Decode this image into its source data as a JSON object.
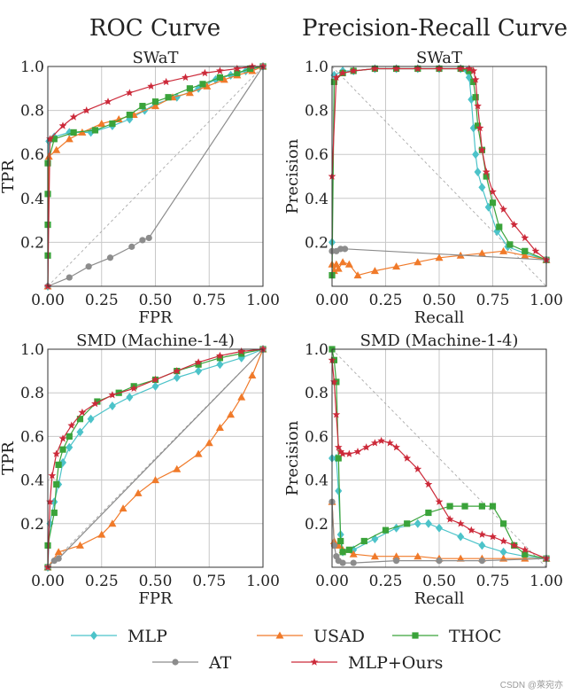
{
  "column_titles": [
    "ROC Curve",
    "Precision-Recall Curve"
  ],
  "legend": [
    {
      "name": "MLP",
      "color": "#4cc3c9",
      "marker": "diamond"
    },
    {
      "name": "USAD",
      "color": "#f07a2a",
      "marker": "triangle"
    },
    {
      "name": "THOC",
      "color": "#3aa33a",
      "marker": "square"
    },
    {
      "name": "AT",
      "color": "#8c8c8c",
      "marker": "circle"
    },
    {
      "name": "MLP+Ours",
      "color": "#cc2a3a",
      "marker": "star"
    }
  ],
  "watermark": "CSDN @萊宛亦",
  "chart_data": [
    {
      "type": "line",
      "title": "SWaT",
      "xlabel": "FPR",
      "ylabel": "TPR",
      "xlim": [
        0,
        1
      ],
      "ylim": [
        0,
        1
      ],
      "grid": true,
      "diagonal": "rising",
      "ticks_x": [
        "0.00",
        "0.25",
        "0.50",
        "0.75",
        "1.00"
      ],
      "ticks_y": [
        "0.2",
        "0.4",
        "0.6",
        "0.8",
        "1.0"
      ],
      "series": [
        {
          "name": "MLP",
          "x": [
            0,
            0.005,
            0.03,
            0.1,
            0.2,
            0.3,
            0.38,
            0.45,
            0.5,
            0.6,
            0.7,
            0.78,
            0.85,
            0.92,
            1
          ],
          "y": [
            0,
            0.66,
            0.68,
            0.7,
            0.7,
            0.73,
            0.76,
            0.8,
            0.83,
            0.86,
            0.9,
            0.94,
            0.96,
            0.98,
            1
          ]
        },
        {
          "name": "USAD",
          "x": [
            0,
            0.005,
            0.04,
            0.1,
            0.16,
            0.25,
            0.33,
            0.4,
            0.5,
            0.58,
            0.66,
            0.74,
            0.82,
            0.88,
            0.95,
            1
          ],
          "y": [
            0,
            0.59,
            0.62,
            0.67,
            0.7,
            0.74,
            0.76,
            0.78,
            0.82,
            0.86,
            0.88,
            0.91,
            0.94,
            0.96,
            0.98,
            1
          ]
        },
        {
          "name": "THOC",
          "x": [
            0,
            0,
            0,
            0,
            0.03,
            0.12,
            0.22,
            0.3,
            0.38,
            0.44,
            0.5,
            0.56,
            0.66,
            0.72,
            0.8,
            0.88,
            0.94,
            1
          ],
          "y": [
            0.14,
            0.28,
            0.42,
            0.56,
            0.67,
            0.7,
            0.71,
            0.74,
            0.78,
            0.82,
            0.84,
            0.86,
            0.9,
            0.92,
            0.95,
            0.97,
            0.99,
            1
          ]
        },
        {
          "name": "AT",
          "x": [
            0,
            0.1,
            0.19,
            0.29,
            0.39,
            0.44,
            0.47,
            1
          ],
          "y": [
            0,
            0.04,
            0.09,
            0.13,
            0.18,
            0.21,
            0.22,
            1
          ]
        },
        {
          "name": "MLP+Ours",
          "x": [
            0,
            0.01,
            0.07,
            0.12,
            0.18,
            0.28,
            0.38,
            0.48,
            0.55,
            0.64,
            0.73,
            0.8,
            0.88,
            0.95,
            1
          ],
          "y": [
            0,
            0.67,
            0.73,
            0.77,
            0.8,
            0.84,
            0.88,
            0.91,
            0.93,
            0.95,
            0.97,
            0.98,
            0.99,
            1,
            1
          ]
        }
      ]
    },
    {
      "type": "line",
      "title": "SWaT",
      "xlabel": "Recall",
      "ylabel": "Precision",
      "xlim": [
        0,
        1
      ],
      "ylim": [
        0,
        1
      ],
      "grid": true,
      "diagonal": "falling",
      "ticks_x": [
        "0.00",
        "0.25",
        "0.50",
        "0.75",
        "1.00"
      ],
      "ticks_y": [
        "0.2",
        "0.4",
        "0.6",
        "0.8",
        "1.0"
      ],
      "series": [
        {
          "name": "MLP",
          "x": [
            0,
            0.01,
            0.05,
            0.1,
            0.2,
            0.3,
            0.4,
            0.5,
            0.6,
            0.63,
            0.64,
            0.65,
            0.66,
            0.67,
            0.68,
            0.7,
            0.73,
            0.77,
            0.82,
            0.9,
            1
          ],
          "y": [
            0.2,
            0.96,
            0.98,
            0.98,
            0.99,
            0.99,
            0.99,
            0.99,
            0.99,
            0.98,
            0.95,
            0.85,
            0.72,
            0.6,
            0.52,
            0.45,
            0.36,
            0.25,
            0.18,
            0.15,
            0.12
          ]
        },
        {
          "name": "USAD",
          "x": [
            0,
            0.01,
            0.02,
            0.03,
            0.05,
            0.08,
            0.12,
            0.2,
            0.3,
            0.4,
            0.5,
            0.6,
            0.7,
            0.8,
            0.9,
            1
          ],
          "y": [
            0.1,
            0.07,
            0.1,
            0.08,
            0.11,
            0.1,
            0.05,
            0.07,
            0.09,
            0.11,
            0.13,
            0.14,
            0.15,
            0.16,
            0.14,
            0.12
          ]
        },
        {
          "name": "THOC",
          "x": [
            0,
            0.01,
            0.05,
            0.1,
            0.2,
            0.3,
            0.4,
            0.5,
            0.6,
            0.64,
            0.66,
            0.67,
            0.68,
            0.7,
            0.72,
            0.75,
            0.78,
            0.83,
            0.9,
            1
          ],
          "y": [
            0.05,
            0.93,
            0.97,
            0.98,
            0.99,
            0.99,
            0.99,
            0.99,
            0.99,
            0.98,
            0.93,
            0.86,
            0.73,
            0.62,
            0.5,
            0.38,
            0.27,
            0.19,
            0.16,
            0.12
          ]
        },
        {
          "name": "AT",
          "x": [
            0,
            0.02,
            0.04,
            0.06,
            1
          ],
          "y": [
            0.16,
            0.16,
            0.17,
            0.17,
            0.12
          ]
        },
        {
          "name": "MLP+Ours",
          "x": [
            0,
            0.02,
            0.05,
            0.1,
            0.2,
            0.3,
            0.4,
            0.5,
            0.6,
            0.64,
            0.66,
            0.67,
            0.68,
            0.69,
            0.7,
            0.72,
            0.75,
            0.8,
            0.85,
            0.9,
            0.95,
            1
          ],
          "y": [
            0.5,
            0.95,
            0.97,
            0.98,
            0.99,
            0.99,
            0.99,
            0.99,
            0.99,
            0.99,
            0.98,
            0.94,
            0.82,
            0.72,
            0.62,
            0.52,
            0.43,
            0.35,
            0.28,
            0.22,
            0.16,
            0.12
          ]
        }
      ]
    },
    {
      "type": "line",
      "title": "SMD (Machine-1-4)",
      "xlabel": "FPR",
      "ylabel": "TPR",
      "xlim": [
        0,
        1
      ],
      "ylim": [
        0,
        1
      ],
      "grid": true,
      "diagonal": "rising",
      "ticks_x": [
        "0.00",
        "0.25",
        "0.50",
        "0.75",
        "1.00"
      ],
      "ticks_y": [
        "0.2",
        "0.4",
        "0.6",
        "0.8",
        "1.0"
      ],
      "series": [
        {
          "name": "MLP",
          "x": [
            0,
            0.01,
            0.03,
            0.05,
            0.07,
            0.1,
            0.15,
            0.2,
            0.3,
            0.38,
            0.5,
            0.6,
            0.7,
            0.8,
            0.9,
            1
          ],
          "y": [
            0,
            0.2,
            0.3,
            0.38,
            0.48,
            0.55,
            0.62,
            0.68,
            0.74,
            0.78,
            0.83,
            0.87,
            0.9,
            0.93,
            0.96,
            1
          ]
        },
        {
          "name": "USAD",
          "x": [
            0,
            0.05,
            0.15,
            0.25,
            0.3,
            0.35,
            0.42,
            0.5,
            0.6,
            0.7,
            0.75,
            0.8,
            0.85,
            0.9,
            0.95,
            1
          ],
          "y": [
            0,
            0.07,
            0.1,
            0.15,
            0.2,
            0.27,
            0.34,
            0.4,
            0.45,
            0.52,
            0.57,
            0.64,
            0.7,
            0.78,
            0.88,
            1
          ]
        },
        {
          "name": "THOC",
          "x": [
            0,
            0,
            0.03,
            0.04,
            0.05,
            0.07,
            0.1,
            0.15,
            0.23,
            0.33,
            0.4,
            0.5,
            0.6,
            0.7,
            0.8,
            0.9,
            1
          ],
          "y": [
            0,
            0.1,
            0.25,
            0.38,
            0.47,
            0.54,
            0.6,
            0.68,
            0.76,
            0.8,
            0.83,
            0.86,
            0.9,
            0.93,
            0.96,
            0.98,
            1
          ]
        },
        {
          "name": "AT",
          "x": [
            0,
            0.03,
            0.05,
            1
          ],
          "y": [
            0,
            0.03,
            0.04,
            1
          ]
        },
        {
          "name": "MLP+Ours",
          "x": [
            0,
            0.01,
            0.02,
            0.04,
            0.07,
            0.11,
            0.16,
            0.22,
            0.3,
            0.4,
            0.5,
            0.6,
            0.7,
            0.8,
            0.9,
            1
          ],
          "y": [
            0,
            0.3,
            0.42,
            0.52,
            0.59,
            0.65,
            0.71,
            0.75,
            0.79,
            0.82,
            0.86,
            0.9,
            0.94,
            0.97,
            0.99,
            1
          ]
        }
      ]
    },
    {
      "type": "line",
      "title": "SMD (Machine-1-4)",
      "xlabel": "Recall",
      "ylabel": "Precision",
      "xlim": [
        0,
        1
      ],
      "ylim": [
        0,
        1
      ],
      "grid": true,
      "diagonal": "falling",
      "ticks_x": [
        "0.00",
        "0.25",
        "0.50",
        "0.75",
        "1.00"
      ],
      "ticks_y": [
        "0.2",
        "0.4",
        "0.6",
        "0.8",
        "1.0"
      ],
      "series": [
        {
          "name": "MLP",
          "x": [
            0,
            0.02,
            0.03,
            0.04,
            0.05,
            0.1,
            0.2,
            0.3,
            0.4,
            0.45,
            0.5,
            0.6,
            0.7,
            0.8,
            0.9,
            1
          ],
          "y": [
            0.5,
            0.5,
            0.35,
            0.15,
            0.07,
            0.08,
            0.13,
            0.18,
            0.2,
            0.2,
            0.18,
            0.14,
            0.1,
            0.07,
            0.05,
            0.04
          ]
        },
        {
          "name": "USAD",
          "x": [
            0,
            0.01,
            0.02,
            0.03,
            0.05,
            0.1,
            0.2,
            0.3,
            0.4,
            0.5,
            0.6,
            0.7,
            0.8,
            0.9,
            1
          ],
          "y": [
            0.3,
            0.12,
            0.1,
            0.1,
            0.08,
            0.06,
            0.05,
            0.05,
            0.05,
            0.04,
            0.04,
            0.04,
            0.04,
            0.04,
            0.04
          ]
        },
        {
          "name": "THOC",
          "x": [
            0,
            0.01,
            0.02,
            0.03,
            0.04,
            0.05,
            0.08,
            0.15,
            0.25,
            0.35,
            0.45,
            0.55,
            0.62,
            0.7,
            0.75,
            0.8,
            0.85,
            0.9,
            1
          ],
          "y": [
            1,
            0.95,
            0.85,
            0.5,
            0.12,
            0.07,
            0.08,
            0.12,
            0.17,
            0.2,
            0.25,
            0.28,
            0.28,
            0.28,
            0.28,
            0.2,
            0.1,
            0.06,
            0.04
          ]
        },
        {
          "name": "AT",
          "x": [
            0,
            0.01,
            0.02,
            0.03,
            0.05,
            0.1,
            0.3,
            0.5,
            0.7,
            1
          ],
          "y": [
            0.3,
            0.1,
            0.05,
            0.03,
            0.02,
            0.02,
            0.03,
            0.03,
            0.03,
            0.04
          ]
        },
        {
          "name": "MLP+Ours",
          "x": [
            0,
            0.01,
            0.02,
            0.03,
            0.04,
            0.05,
            0.08,
            0.12,
            0.16,
            0.2,
            0.23,
            0.27,
            0.3,
            0.35,
            0.4,
            0.45,
            0.5,
            0.55,
            0.6,
            0.65,
            0.7,
            0.75,
            0.8,
            0.85,
            0.9,
            1
          ],
          "y": [
            0.95,
            0.85,
            0.7,
            0.55,
            0.53,
            0.52,
            0.52,
            0.53,
            0.55,
            0.57,
            0.58,
            0.57,
            0.55,
            0.5,
            0.45,
            0.38,
            0.3,
            0.22,
            0.2,
            0.17,
            0.15,
            0.14,
            0.12,
            0.1,
            0.08,
            0.04
          ]
        }
      ]
    }
  ]
}
